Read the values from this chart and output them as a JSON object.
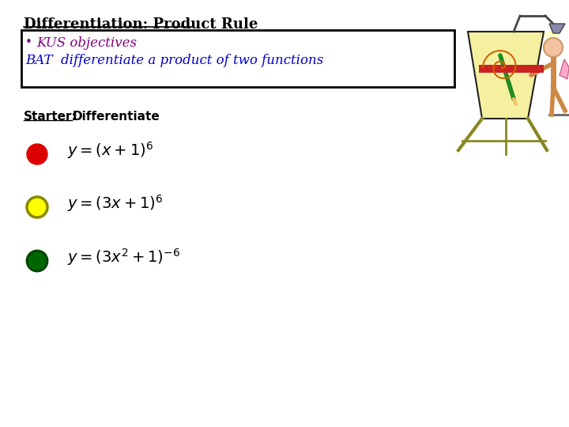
{
  "title": "Differentiation: Product Rule",
  "box_line1": "  KUS objectives",
  "box_line2": "BAT  differentiate a product of two functions",
  "starter_label": "Starter:",
  "starter_text": " Differentiate",
  "circle1_color": "#dd0000",
  "circle2_color": "#ffff00",
  "circle2_edge": "#888800",
  "circle3_color": "#006600",
  "circle3_edge": "#004400",
  "bg_color": "#ffffff",
  "title_color": "#000000",
  "box_line1_color": "#800080",
  "box_line2_color": "#0000cc",
  "starter_color": "#000000"
}
